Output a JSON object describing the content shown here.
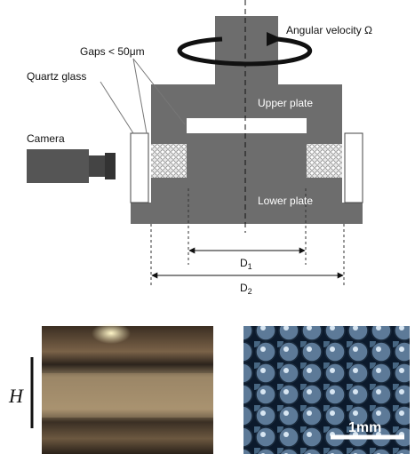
{
  "labels": {
    "angular_velocity": "Angular velocity Ω",
    "gaps": "Gaps < 50μm",
    "quartz_glass": "Quartz glass",
    "camera": "Camera",
    "upper_plate": "Upper plate",
    "lower_plate": "Lower plate"
  },
  "dimensions": {
    "d1": {
      "main": "D",
      "sub": "1"
    },
    "d2": {
      "main": "D",
      "sub": "2"
    }
  },
  "photos": {
    "height_label": "H",
    "scale_bar": "1mm"
  }
}
